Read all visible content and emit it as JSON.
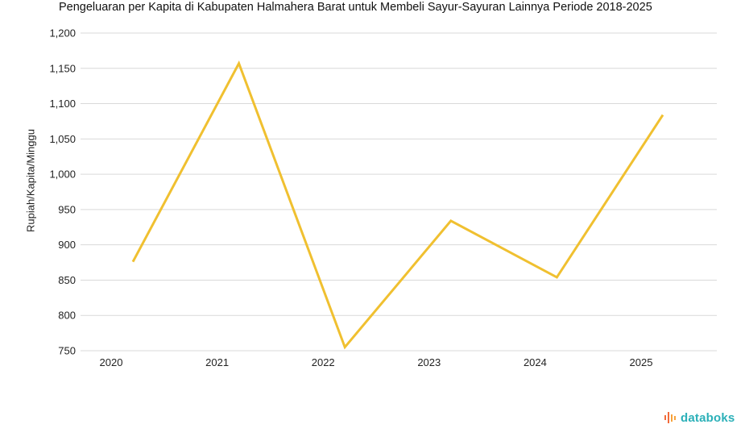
{
  "title": "Pengeluaran per Kapita di Kabupaten Halmahera Barat untuk Membeli Sayur-Sayuran Lainnya Periode 2018-2025",
  "brand": {
    "name": "databoks",
    "color": "#2bb0b8",
    "icon_color": "#f26b3a"
  },
  "chart_data": {
    "type": "line",
    "title": "Pengeluaran per Kapita di Kabupaten Halmahera Barat untuk Membeli Sayur-Sayuran Lainnya Periode 2018-2025",
    "xlabel": "",
    "ylabel": "Rupiah/Kapita/Minggu",
    "categories": [
      "2020",
      "2021",
      "2022",
      "2023",
      "2024",
      "2025"
    ],
    "series": [
      {
        "values": [
          876,
          1157,
          755,
          934,
          854,
          1084
        ],
        "color": "#f0c030"
      }
    ],
    "ylim": [
      750,
      1200
    ],
    "yticks": [
      750,
      800,
      850,
      900,
      950,
      1000,
      1050,
      1100,
      1150,
      1200
    ],
    "ytick_labels": [
      "750",
      "800",
      "850",
      "900",
      "950",
      "1,000",
      "1,050",
      "1,100",
      "1,150",
      "1,200"
    ],
    "grid": true,
    "legend": "none"
  }
}
